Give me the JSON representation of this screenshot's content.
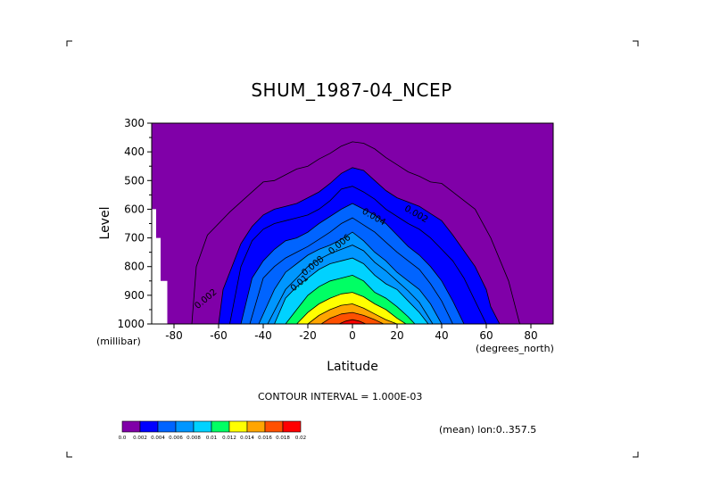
{
  "title": "SHUM_1987-04_NCEP",
  "contour_interval": "CONTOUR INTERVAL = 1.000E-03",
  "annotation": "(mean) lon:0..357.5",
  "chart_data": {
    "type": "heatmap",
    "title": "SHUM_1987-04_NCEP",
    "xlabel": "Latitude",
    "x_units": "(degrees_north)",
    "ylabel": "Level",
    "y_units": "(millibar)",
    "xlim": [
      -90,
      90
    ],
    "ylim": [
      1000,
      300
    ],
    "x_ticks": [
      "-80",
      "-60",
      "-40",
      "-20",
      "0",
      "20",
      "40",
      "60",
      "80"
    ],
    "y_ticks": [
      "300",
      "400",
      "500",
      "600",
      "700",
      "800",
      "900",
      "1000"
    ],
    "x_tick_values": [
      -80,
      -60,
      -40,
      -20,
      0,
      20,
      40,
      60,
      80
    ],
    "y_tick_values": [
      300,
      400,
      500,
      600,
      700,
      800,
      900,
      1000
    ],
    "contour_interval": 0.001,
    "levels": [
      0.002,
      0.003,
      0.004,
      0.005,
      0.006,
      0.007,
      0.008,
      0.009,
      0.01,
      0.011,
      0.012,
      0.013,
      0.014,
      0.015,
      0.016,
      0.017,
      0.018
    ],
    "fill_bounds": [
      0.0,
      0.002,
      0.004,
      0.006,
      0.008,
      0.01,
      0.012,
      0.014,
      0.016,
      0.018,
      0.02
    ],
    "fill_colors": [
      "#8000a8",
      "#0000ff",
      "#0064ff",
      "#0096ff",
      "#00d2ff",
      "#00ff64",
      "#ffff00",
      "#ffa500",
      "#ff5000",
      "#ff0000"
    ],
    "colorbar_labels": [
      "0.0",
      "0.002",
      "0.004",
      "0.006",
      "0.008",
      "0.01",
      "0.012",
      "0.014",
      "0.016",
      "0.018",
      "0.02"
    ],
    "contour_labels": [
      {
        "text": "0.002",
        "lat": 28,
        "p": 625
      },
      {
        "text": "0.004",
        "lat": 9,
        "p": 635
      },
      {
        "text": "0.006",
        "lat": -5,
        "p": 730
      },
      {
        "text": "0.008",
        "lat": -17,
        "p": 805
      },
      {
        "text": "0.01",
        "lat": -23,
        "p": 865
      },
      {
        "text": "0.002",
        "lat": -65,
        "p": 920
      }
    ],
    "threshold_contours": [
      {
        "level": 0.001,
        "lat": [
          -72,
          -70,
          -65,
          -55,
          -45,
          -40,
          -35,
          -30,
          -25,
          -20,
          -15,
          -10,
          -5,
          0,
          5,
          10,
          15,
          20,
          25,
          30,
          35,
          40,
          45,
          55,
          62,
          70,
          75
        ],
        "p": [
          1000,
          800,
          690,
          610,
          540,
          505,
          500,
          480,
          460,
          450,
          425,
          405,
          380,
          365,
          370,
          390,
          420,
          445,
          470,
          485,
          505,
          510,
          540,
          600,
          700,
          850,
          1000
        ]
      },
      {
        "level": 0.002,
        "lat": [
          -60,
          -58,
          -50,
          -45,
          -40,
          -35,
          -30,
          -25,
          -20,
          -15,
          -10,
          -5,
          0,
          5,
          10,
          15,
          20,
          25,
          30,
          35,
          40,
          45,
          55,
          60,
          62,
          66
        ],
        "p": [
          1000,
          880,
          720,
          660,
          620,
          600,
          590,
          580,
          560,
          540,
          510,
          475,
          455,
          465,
          500,
          535,
          560,
          575,
          590,
          615,
          640,
          690,
          800,
          880,
          940,
          1000
        ]
      },
      {
        "level": 0.004,
        "lat": [
          -50,
          -45,
          -40,
          -35,
          -30,
          -25,
          -20,
          -15,
          -10,
          -5,
          0,
          5,
          10,
          15,
          20,
          25,
          30,
          35,
          40,
          45,
          50
        ],
        "p": [
          1000,
          840,
          780,
          740,
          710,
          700,
          680,
          650,
          625,
          600,
          580,
          600,
          620,
          650,
          690,
          730,
          760,
          800,
          850,
          920,
          1000
        ]
      },
      {
        "level": 0.006,
        "lat": [
          -42,
          -35,
          -30,
          -25,
          -20,
          -15,
          -10,
          -5,
          0,
          5,
          10,
          15,
          20,
          25,
          30,
          35,
          40
        ],
        "p": [
          1000,
          880,
          820,
          790,
          760,
          740,
          725,
          705,
          680,
          710,
          750,
          780,
          820,
          850,
          880,
          930,
          1000
        ]
      },
      {
        "level": 0.008,
        "lat": [
          -35,
          -30,
          -25,
          -20,
          -15,
          -10,
          -5,
          0,
          5,
          10,
          15,
          20,
          25,
          30,
          34
        ],
        "p": [
          1000,
          910,
          870,
          840,
          810,
          790,
          780,
          770,
          790,
          830,
          860,
          880,
          920,
          960,
          1000
        ]
      },
      {
        "level": 0.01,
        "lat": [
          -30,
          -25,
          -20,
          -15,
          -10,
          -5,
          0,
          5,
          10,
          15,
          20,
          25,
          28
        ],
        "p": [
          1000,
          950,
          900,
          870,
          850,
          840,
          830,
          850,
          890,
          910,
          940,
          975,
          1000
        ]
      },
      {
        "level": 0.012,
        "lat": [
          -25,
          -20,
          -15,
          -10,
          -5,
          0,
          5,
          10,
          15,
          20,
          24
        ],
        "p": [
          1000,
          960,
          930,
          910,
          895,
          890,
          905,
          930,
          950,
          980,
          1000
        ]
      },
      {
        "level": 0.014,
        "lat": [
          -20,
          -15,
          -10,
          -5,
          0,
          5,
          10,
          15,
          20
        ],
        "p": [
          1000,
          970,
          950,
          935,
          930,
          945,
          965,
          985,
          1000
        ]
      },
      {
        "level": 0.016,
        "lat": [
          -14,
          -10,
          -5,
          0,
          5,
          10,
          14
        ],
        "p": [
          1000,
          980,
          965,
          960,
          970,
          985,
          1000
        ]
      },
      {
        "level": 0.018,
        "lat": [
          -6,
          -3,
          0,
          3,
          6
        ],
        "p": [
          1000,
          990,
          985,
          990,
          1000
        ]
      }
    ],
    "extra_contours": [
      {
        "lat": [
          -55,
          -50,
          -45,
          -40,
          -35,
          -30,
          -25,
          -20,
          -15,
          -10,
          -5,
          0,
          5,
          10,
          15,
          20,
          25,
          30,
          35,
          40,
          45,
          50,
          55,
          60
        ],
        "p": [
          1000,
          800,
          710,
          670,
          650,
          640,
          630,
          620,
          600,
          570,
          530,
          520,
          540,
          565,
          600,
          625,
          650,
          670,
          700,
          740,
          780,
          840,
          920,
          1000
        ]
      },
      {
        "lat": [
          -46,
          -40,
          -35,
          -30,
          -25,
          -20,
          -15,
          -10,
          -5,
          0,
          5,
          10,
          15,
          20,
          25,
          30,
          35,
          40,
          45
        ],
        "p": [
          1000,
          840,
          800,
          770,
          750,
          730,
          705,
          680,
          650,
          630,
          655,
          680,
          715,
          750,
          780,
          810,
          860,
          920,
          1000
        ]
      },
      {
        "lat": [
          -38,
          -30,
          -25,
          -20,
          -15,
          -10,
          -5,
          0,
          5,
          10,
          15,
          20,
          25,
          30,
          36
        ],
        "p": [
          1000,
          880,
          840,
          800,
          775,
          755,
          740,
          725,
          745,
          785,
          815,
          850,
          885,
          925,
          1000
        ]
      }
    ],
    "missing_regions": [
      {
        "lat": [
          -90,
          -88,
          -88,
          -90
        ],
        "p": [
          600,
          600,
          1000,
          1000
        ]
      },
      {
        "lat": [
          -90,
          -86,
          -86,
          -90
        ],
        "p": [
          700,
          700,
          1000,
          1000
        ]
      },
      {
        "lat": [
          -90,
          -83,
          -83,
          -90
        ],
        "p": [
          850,
          850,
          1000,
          1000
        ]
      }
    ]
  }
}
